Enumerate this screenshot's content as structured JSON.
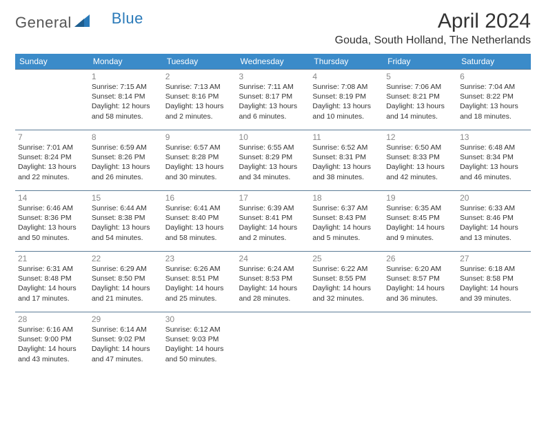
{
  "logo": {
    "general": "General",
    "blue": "Blue"
  },
  "title": "April 2024",
  "location": "Gouda, South Holland, The Netherlands",
  "colors": {
    "header_bg": "#3b8bc9",
    "header_text": "#ffffff",
    "border": "#5a7a95",
    "daynum": "#888888",
    "body_text": "#333333",
    "logo_blue": "#2a7ab9"
  },
  "weekdays": [
    "Sunday",
    "Monday",
    "Tuesday",
    "Wednesday",
    "Thursday",
    "Friday",
    "Saturday"
  ],
  "weeks": [
    [
      null,
      {
        "n": "1",
        "sr": "7:15 AM",
        "ss": "8:14 PM",
        "dl": "12 hours and 58 minutes."
      },
      {
        "n": "2",
        "sr": "7:13 AM",
        "ss": "8:16 PM",
        "dl": "13 hours and 2 minutes."
      },
      {
        "n": "3",
        "sr": "7:11 AM",
        "ss": "8:17 PM",
        "dl": "13 hours and 6 minutes."
      },
      {
        "n": "4",
        "sr": "7:08 AM",
        "ss": "8:19 PM",
        "dl": "13 hours and 10 minutes."
      },
      {
        "n": "5",
        "sr": "7:06 AM",
        "ss": "8:21 PM",
        "dl": "13 hours and 14 minutes."
      },
      {
        "n": "6",
        "sr": "7:04 AM",
        "ss": "8:22 PM",
        "dl": "13 hours and 18 minutes."
      }
    ],
    [
      {
        "n": "7",
        "sr": "7:01 AM",
        "ss": "8:24 PM",
        "dl": "13 hours and 22 minutes."
      },
      {
        "n": "8",
        "sr": "6:59 AM",
        "ss": "8:26 PM",
        "dl": "13 hours and 26 minutes."
      },
      {
        "n": "9",
        "sr": "6:57 AM",
        "ss": "8:28 PM",
        "dl": "13 hours and 30 minutes."
      },
      {
        "n": "10",
        "sr": "6:55 AM",
        "ss": "8:29 PM",
        "dl": "13 hours and 34 minutes."
      },
      {
        "n": "11",
        "sr": "6:52 AM",
        "ss": "8:31 PM",
        "dl": "13 hours and 38 minutes."
      },
      {
        "n": "12",
        "sr": "6:50 AM",
        "ss": "8:33 PM",
        "dl": "13 hours and 42 minutes."
      },
      {
        "n": "13",
        "sr": "6:48 AM",
        "ss": "8:34 PM",
        "dl": "13 hours and 46 minutes."
      }
    ],
    [
      {
        "n": "14",
        "sr": "6:46 AM",
        "ss": "8:36 PM",
        "dl": "13 hours and 50 minutes."
      },
      {
        "n": "15",
        "sr": "6:44 AM",
        "ss": "8:38 PM",
        "dl": "13 hours and 54 minutes."
      },
      {
        "n": "16",
        "sr": "6:41 AM",
        "ss": "8:40 PM",
        "dl": "13 hours and 58 minutes."
      },
      {
        "n": "17",
        "sr": "6:39 AM",
        "ss": "8:41 PM",
        "dl": "14 hours and 2 minutes."
      },
      {
        "n": "18",
        "sr": "6:37 AM",
        "ss": "8:43 PM",
        "dl": "14 hours and 5 minutes."
      },
      {
        "n": "19",
        "sr": "6:35 AM",
        "ss": "8:45 PM",
        "dl": "14 hours and 9 minutes."
      },
      {
        "n": "20",
        "sr": "6:33 AM",
        "ss": "8:46 PM",
        "dl": "14 hours and 13 minutes."
      }
    ],
    [
      {
        "n": "21",
        "sr": "6:31 AM",
        "ss": "8:48 PM",
        "dl": "14 hours and 17 minutes."
      },
      {
        "n": "22",
        "sr": "6:29 AM",
        "ss": "8:50 PM",
        "dl": "14 hours and 21 minutes."
      },
      {
        "n": "23",
        "sr": "6:26 AM",
        "ss": "8:51 PM",
        "dl": "14 hours and 25 minutes."
      },
      {
        "n": "24",
        "sr": "6:24 AM",
        "ss": "8:53 PM",
        "dl": "14 hours and 28 minutes."
      },
      {
        "n": "25",
        "sr": "6:22 AM",
        "ss": "8:55 PM",
        "dl": "14 hours and 32 minutes."
      },
      {
        "n": "26",
        "sr": "6:20 AM",
        "ss": "8:57 PM",
        "dl": "14 hours and 36 minutes."
      },
      {
        "n": "27",
        "sr": "6:18 AM",
        "ss": "8:58 PM",
        "dl": "14 hours and 39 minutes."
      }
    ],
    [
      {
        "n": "28",
        "sr": "6:16 AM",
        "ss": "9:00 PM",
        "dl": "14 hours and 43 minutes."
      },
      {
        "n": "29",
        "sr": "6:14 AM",
        "ss": "9:02 PM",
        "dl": "14 hours and 47 minutes."
      },
      {
        "n": "30",
        "sr": "6:12 AM",
        "ss": "9:03 PM",
        "dl": "14 hours and 50 minutes."
      },
      null,
      null,
      null,
      null
    ]
  ],
  "labels": {
    "sunrise": "Sunrise:",
    "sunset": "Sunset:",
    "daylight": "Daylight:"
  }
}
